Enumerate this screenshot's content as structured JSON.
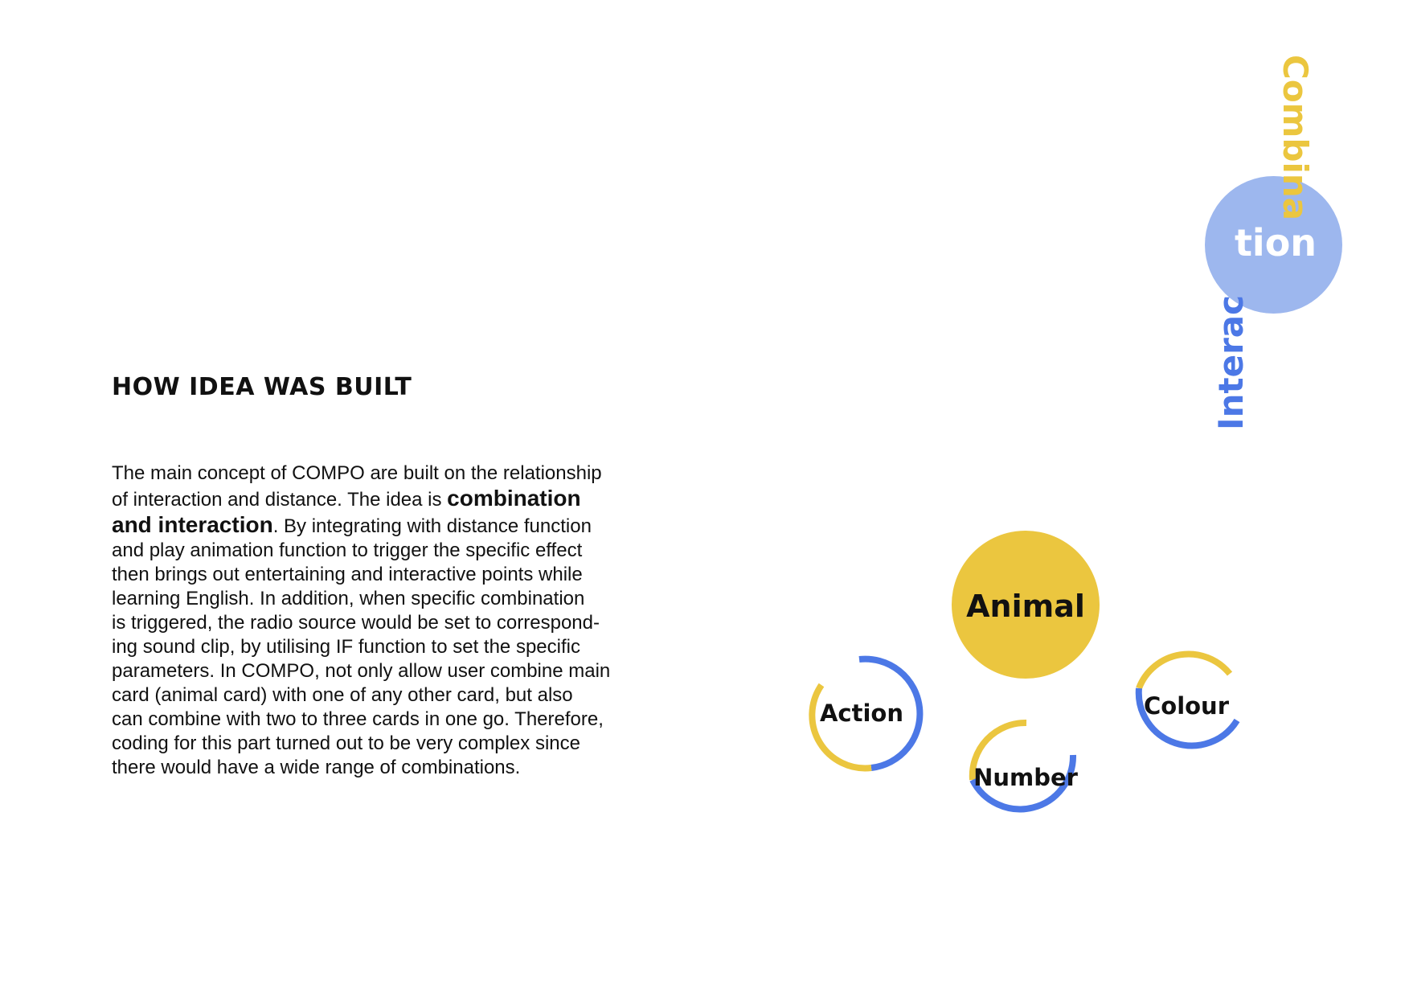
{
  "section": {
    "heading": "HOW IDEA WAS BUILT",
    "paragraph_part1": "The main concept of COMPO are built on the relationship\nof interaction and distance. The idea is ",
    "paragraph_bold": "combination\nand interaction",
    "paragraph_part2": ". By integrating with distance function\nand play animation function to trigger the specific effect\nthen brings out entertaining and interactive points while\nlearning English. In addition, when specific combination\nis triggered, the radio source would be set to correspond-\ning sound clip, by utilising IF function to set the specific\nparameters. In COMPO, not only allow user combine main\ncard (animal card) with one of any other card, but also\ncan combine with two to three cards in one go. Therefore,\ncoding for this part turned out to be very complex since\nthere would have a wide range of combinations."
  },
  "decoration": {
    "vertical_top": "Combina",
    "circle_text": "tion",
    "vertical_side": "Interac"
  },
  "diagram": {
    "main_node": "Animal",
    "nodes": [
      "Action",
      "Number",
      "Colour"
    ]
  },
  "colors": {
    "yellow": "#ebc63f",
    "blue": "#4c78e6",
    "light_blue": "#9db7ee"
  }
}
